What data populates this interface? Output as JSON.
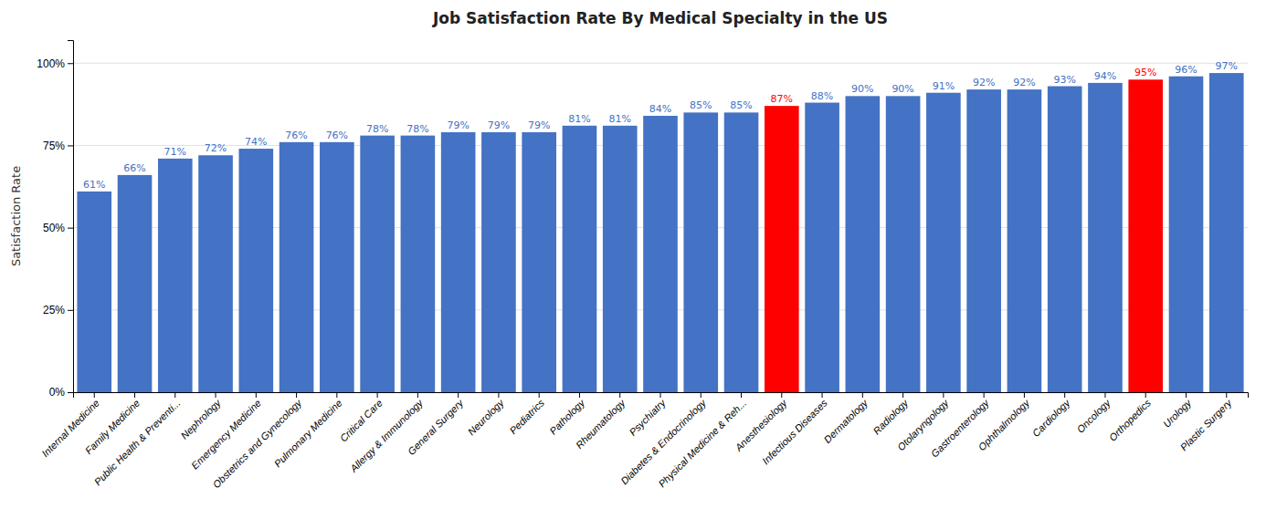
{
  "chart_data": {
    "type": "bar",
    "title": "Job Satisfaction Rate By Medical Specialty in the US",
    "ylabel": "Satisfaction Rate",
    "categories": [
      "Internal Medicine",
      "Family Medicine",
      "Public Health & Preventi...",
      "Nephrology",
      "Emergency Medicine",
      "Obstetrics and Gynecology",
      "Pulmonary Medicine",
      "Critical Care",
      "Allergy & Immunology",
      "General Surgery",
      "Neurology",
      "Pediatrics",
      "Pathology",
      "Rheumatology",
      "Psychiatry",
      "Diabetes & Endocrinology",
      "Physical Medicine & Reh...",
      "Anesthesiology",
      "Infectious Diseases",
      "Dermatology",
      "Radiology",
      "Otolaryngology",
      "Gastroenterology",
      "Ophthalmology",
      "Cardiology",
      "Oncology",
      "Orthopedics",
      "Urology",
      "Plastic Surgery"
    ],
    "values": [
      61,
      66,
      71,
      72,
      74,
      76,
      76,
      78,
      78,
      79,
      79,
      79,
      81,
      81,
      84,
      85,
      85,
      87,
      88,
      90,
      90,
      91,
      92,
      92,
      93,
      94,
      95,
      96,
      97
    ],
    "value_labels": [
      "61%",
      "66%",
      "71%",
      "72%",
      "74%",
      "76%",
      "76%",
      "78%",
      "78%",
      "79%",
      "79%",
      "79%",
      "81%",
      "81%",
      "84%",
      "85%",
      "85%",
      "87%",
      "88%",
      "90%",
      "90%",
      "91%",
      "92%",
      "92%",
      "93%",
      "94%",
      "95%",
      "96%",
      "97%"
    ],
    "colors": [
      "#4472C4",
      "#4472C4",
      "#4472C4",
      "#4472C4",
      "#4472C4",
      "#4472C4",
      "#4472C4",
      "#4472C4",
      "#4472C4",
      "#4472C4",
      "#4472C4",
      "#4472C4",
      "#4472C4",
      "#4472C4",
      "#4472C4",
      "#4472C4",
      "#4472C4",
      "#FF0000",
      "#4472C4",
      "#4472C4",
      "#4472C4",
      "#4472C4",
      "#4472C4",
      "#4472C4",
      "#4472C4",
      "#4472C4",
      "#FF0000",
      "#4472C4",
      "#4472C4"
    ],
    "ylim": [
      0,
      107
    ],
    "yticks": [
      {
        "value": 0,
        "label": "0%"
      },
      {
        "value": 25,
        "label": "25%"
      },
      {
        "value": 50,
        "label": "50%"
      },
      {
        "value": 75,
        "label": "75%"
      },
      {
        "value": 100,
        "label": "100%"
      }
    ],
    "grid": true,
    "data_labels": true
  }
}
